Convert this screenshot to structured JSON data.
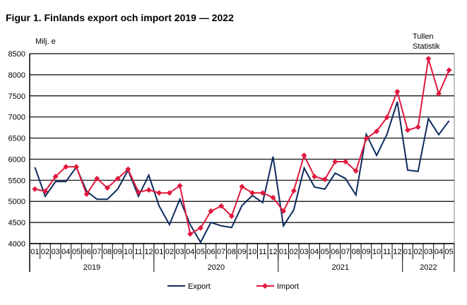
{
  "chart_data": {
    "type": "line",
    "title": "Figur 1. Finlands export och import 2019 — 2022",
    "ylabel": "Milj. e",
    "source": [
      "Tullen",
      "Statistik"
    ],
    "ylim": [
      4000,
      8500
    ],
    "yticks": [
      4000,
      4500,
      5000,
      5500,
      6000,
      6500,
      7000,
      7500,
      8000,
      8500
    ],
    "grid": true,
    "legend_placement": "bottom",
    "categories": [
      "01",
      "02",
      "03",
      "04",
      "05",
      "06",
      "07",
      "08",
      "09",
      "10",
      "11",
      "12",
      "01",
      "02",
      "03",
      "04",
      "05",
      "06",
      "07",
      "08",
      "09",
      "10",
      "11",
      "12",
      "01",
      "02",
      "03",
      "04",
      "05",
      "06",
      "07",
      "08",
      "09",
      "10",
      "11",
      "12",
      "01",
      "02",
      "03",
      "04",
      "05"
    ],
    "years": [
      {
        "label": "2019",
        "months": 12
      },
      {
        "label": "2020",
        "months": 12
      },
      {
        "label": "2021",
        "months": 12
      },
      {
        "label": "2022",
        "months": 5
      }
    ],
    "series": [
      {
        "name": "Export",
        "color": "#0d2a5e",
        "marker": "none",
        "values": [
          5810,
          5120,
          5470,
          5470,
          5810,
          5240,
          5050,
          5050,
          5290,
          5740,
          5120,
          5620,
          4890,
          4450,
          5050,
          4450,
          4030,
          4500,
          4420,
          4380,
          4900,
          5140,
          4970,
          6060,
          4420,
          4800,
          5790,
          5340,
          5290,
          5670,
          5540,
          5150,
          6590,
          6090,
          6590,
          7360,
          5740,
          5710,
          6960,
          6580,
          6910
        ]
      },
      {
        "name": "Import",
        "color": "#e0183c",
        "marker": "diamond",
        "values": [
          5290,
          5240,
          5590,
          5820,
          5820,
          5170,
          5540,
          5320,
          5540,
          5760,
          5220,
          5270,
          5200,
          5200,
          5370,
          4230,
          4370,
          4770,
          4890,
          4650,
          5350,
          5200,
          5200,
          5090,
          4770,
          5250,
          6090,
          5590,
          5520,
          5940,
          5940,
          5720,
          6490,
          6660,
          6990,
          7600,
          6690,
          6760,
          8380,
          7550,
          8110
        ]
      }
    ]
  }
}
